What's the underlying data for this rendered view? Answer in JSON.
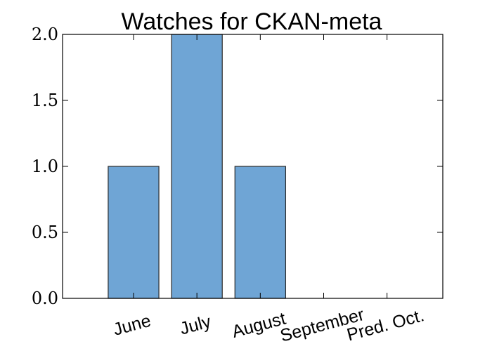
{
  "chart_data": {
    "type": "bar",
    "title": "Watches for CKAN-meta",
    "categories": [
      "June",
      "July",
      "August",
      "September",
      "Pred. Oct."
    ],
    "values": [
      1,
      2,
      1,
      0,
      0
    ],
    "ylim": [
      0,
      2
    ],
    "yticks": [
      "0.0",
      "0.5",
      "1.0",
      "1.5",
      "2.0"
    ],
    "xlabel": "",
    "ylabel": "",
    "grid": false,
    "legend": "none",
    "bar_color": "#6fa5d5",
    "edge_color": "#2b2b2b"
  }
}
